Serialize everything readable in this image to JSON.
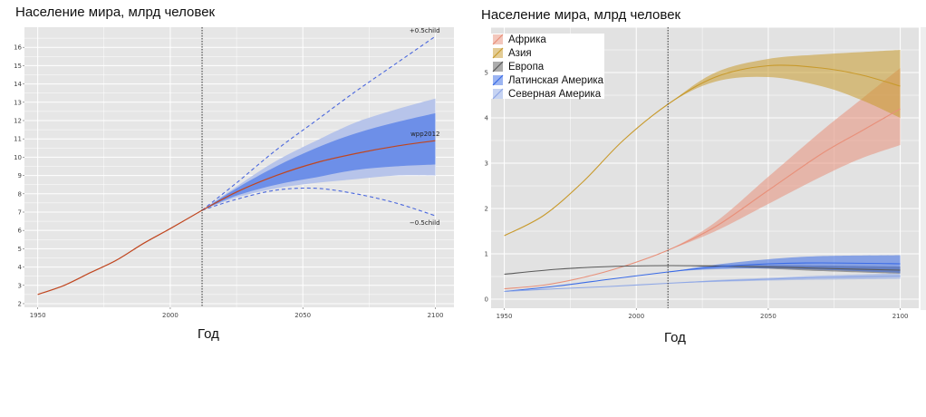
{
  "chart_data": [
    {
      "type": "line",
      "title": "Население мира, млрд человек",
      "xlabel": "Год",
      "ylabel": "",
      "xlim": [
        1945,
        2107
      ],
      "ylim": [
        1.8,
        17.1
      ],
      "x_ticks": [
        1950,
        2000,
        2050,
        2100
      ],
      "y_ticks": [
        2,
        3,
        4,
        5,
        6,
        7,
        8,
        9,
        10,
        11,
        12,
        13,
        14,
        15,
        16
      ],
      "reference_line_x": 2012,
      "grid": true,
      "historical": {
        "x": [
          1950,
          1960,
          1970,
          1980,
          1990,
          2000,
          2012
        ],
        "y": [
          2.5,
          3.0,
          3.7,
          4.4,
          5.3,
          6.1,
          7.1
        ]
      },
      "projection": {
        "x": [
          2012,
          2025,
          2040,
          2055,
          2070,
          2085,
          2100
        ],
        "median": [
          7.1,
          8.1,
          9.0,
          9.7,
          10.2,
          10.6,
          10.9
        ],
        "pi80_low": [
          7.1,
          7.9,
          8.5,
          8.9,
          9.3,
          9.5,
          9.6
        ],
        "pi80_high": [
          7.1,
          8.3,
          9.5,
          10.5,
          11.3,
          11.9,
          12.4
        ],
        "pi95_low": [
          7.1,
          7.8,
          8.3,
          8.6,
          8.8,
          9.0,
          9.0
        ],
        "pi95_high": [
          7.1,
          8.4,
          9.8,
          10.9,
          11.9,
          12.6,
          13.2
        ],
        "plus_half_child": [
          7.1,
          8.6,
          10.4,
          12.0,
          13.6,
          15.1,
          16.6
        ],
        "minus_half_child": [
          7.1,
          7.7,
          8.2,
          8.3,
          8.0,
          7.5,
          6.8
        ]
      },
      "annotations": [
        "+0.5child",
        "wpp2012",
        "−0.5child"
      ]
    },
    {
      "type": "line",
      "title": "Население мира, млрд человек",
      "xlabel": "Год",
      "ylabel": "",
      "xlim": [
        1945,
        2107
      ],
      "ylim": [
        -0.2,
        6.0
      ],
      "x_ticks": [
        1950,
        2000,
        2050,
        2100
      ],
      "y_tick_labels": [
        "0",
        "1",
        "2",
        "3",
        "4",
        "5"
      ],
      "reference_line_x": 2012,
      "grid": true,
      "legend_position": "top-left",
      "series": [
        {
          "name": "Африка",
          "color": "#e8907a",
          "x": [
            1950,
            1965,
            1980,
            1995,
            2012,
            2030,
            2050,
            2070,
            2085,
            2100
          ],
          "median": [
            0.23,
            0.31,
            0.48,
            0.72,
            1.08,
            1.6,
            2.4,
            3.2,
            3.7,
            4.2
          ],
          "low": [
            0.23,
            0.31,
            0.48,
            0.72,
            1.08,
            1.5,
            2.1,
            2.7,
            3.1,
            3.4
          ],
          "high": [
            0.23,
            0.31,
            0.48,
            0.72,
            1.08,
            1.7,
            2.7,
            3.7,
            4.4,
            5.1
          ]
        },
        {
          "name": "Азия",
          "color": "#c89a2c",
          "x": [
            1950,
            1965,
            1980,
            1995,
            2012,
            2030,
            2050,
            2070,
            2085,
            2100
          ],
          "median": [
            1.4,
            1.85,
            2.6,
            3.5,
            4.3,
            4.9,
            5.15,
            5.1,
            4.95,
            4.7
          ],
          "low": [
            1.4,
            1.85,
            2.6,
            3.5,
            4.3,
            4.8,
            4.9,
            4.7,
            4.4,
            4.0
          ],
          "high": [
            1.4,
            1.85,
            2.6,
            3.5,
            4.3,
            5.0,
            5.3,
            5.4,
            5.45,
            5.5
          ]
        },
        {
          "name": "Европа",
          "color": "#5a5a5a",
          "x": [
            1950,
            1970,
            1990,
            2012,
            2030,
            2050,
            2070,
            2100
          ],
          "median": [
            0.55,
            0.66,
            0.72,
            0.74,
            0.73,
            0.71,
            0.68,
            0.64
          ],
          "low": [
            0.55,
            0.66,
            0.72,
            0.74,
            0.71,
            0.67,
            0.62,
            0.56
          ],
          "high": [
            0.55,
            0.66,
            0.72,
            0.74,
            0.75,
            0.75,
            0.74,
            0.72
          ]
        },
        {
          "name": "Латинская Америка",
          "color": "#3a6be6",
          "x": [
            1950,
            1970,
            1990,
            2012,
            2030,
            2050,
            2070,
            2100
          ],
          "median": [
            0.17,
            0.29,
            0.44,
            0.6,
            0.71,
            0.78,
            0.8,
            0.78
          ],
          "low": [
            0.17,
            0.29,
            0.44,
            0.6,
            0.66,
            0.68,
            0.65,
            0.58
          ],
          "high": [
            0.17,
            0.29,
            0.44,
            0.6,
            0.76,
            0.88,
            0.95,
            0.97
          ]
        },
        {
          "name": "Северная Америка",
          "color": "#8ea7e6",
          "x": [
            1950,
            1970,
            1990,
            2012,
            2030,
            2050,
            2070,
            2100
          ],
          "median": [
            0.17,
            0.23,
            0.28,
            0.35,
            0.4,
            0.44,
            0.48,
            0.51
          ],
          "low": [
            0.17,
            0.23,
            0.28,
            0.35,
            0.38,
            0.41,
            0.43,
            0.45
          ],
          "high": [
            0.17,
            0.23,
            0.28,
            0.35,
            0.42,
            0.47,
            0.52,
            0.57
          ]
        }
      ]
    }
  ]
}
